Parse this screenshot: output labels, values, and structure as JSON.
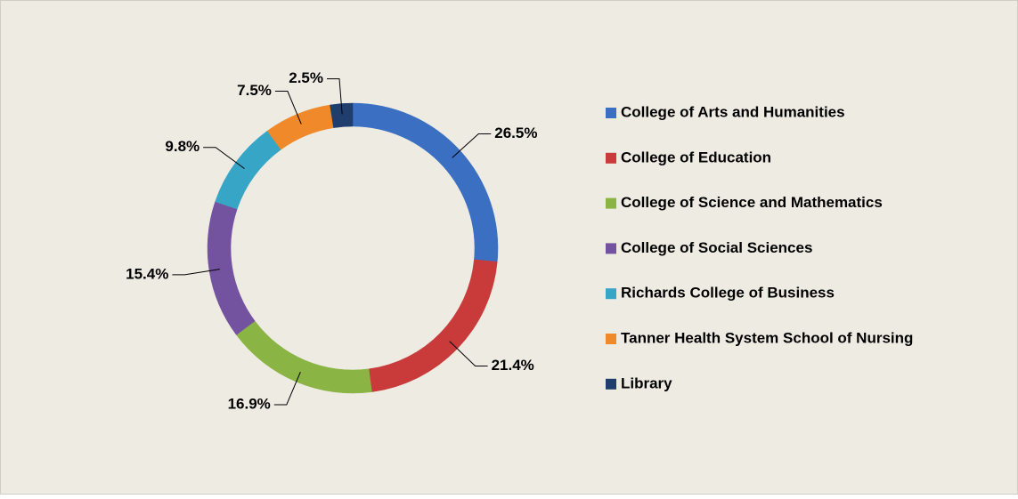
{
  "chart_data": {
    "type": "pie",
    "categories": [
      "College of Arts and Humanities",
      "College of Education",
      "College of Science and Mathematics",
      "College of Social Sciences",
      "Richards College of Business",
      "Tanner Health System School of Nursing",
      "Library"
    ],
    "values": [
      26.5,
      21.4,
      16.9,
      15.4,
      9.8,
      7.5,
      2.5
    ],
    "value_labels": [
      "26.5%",
      "21.4%",
      "16.9%",
      "15.4%",
      "9.8%",
      "7.5%",
      "2.5%"
    ],
    "colors": [
      "#3b6fc2",
      "#c93a3b",
      "#8ab443",
      "#7353a0",
      "#36a5c6",
      "#f0892a",
      "#1f3e6d"
    ],
    "legend": "right"
  }
}
